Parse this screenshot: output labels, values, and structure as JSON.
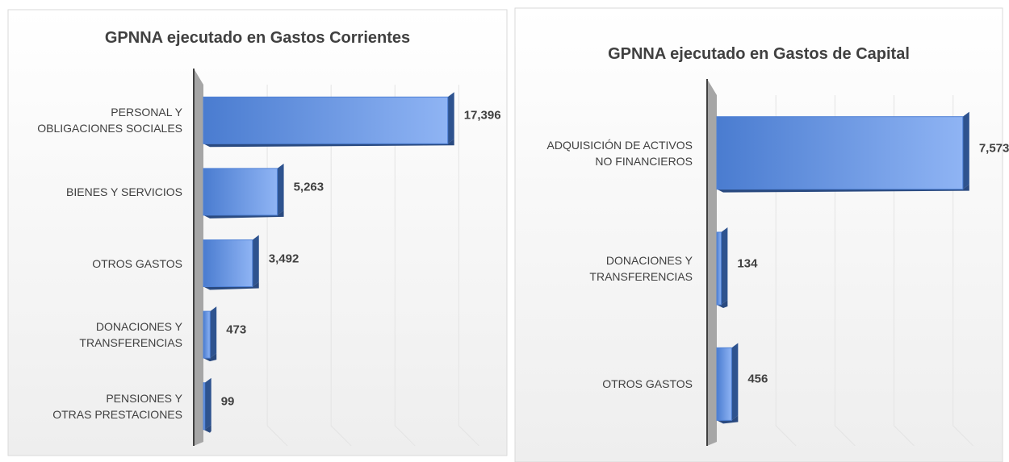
{
  "chart_data": [
    {
      "type": "bar3d_h",
      "title": "GPNNA ejecutado en Gastos Corrientes",
      "categories": [
        "PERSONAL Y\nOBLIGACIONES SOCIALES",
        "BIENES Y SERVICIOS",
        "OTROS GASTOS",
        "DONACIONES Y\nTRANSFERENCIAS",
        "PENSIONES Y\nOTRAS PRESTACIONES"
      ],
      "values": [
        17396,
        5263,
        3492,
        473,
        99
      ],
      "value_labels": [
        "17,396",
        "5,263",
        "3,492",
        "473",
        "99"
      ],
      "color": "#4f81d6",
      "xlim": [
        0,
        20000
      ]
    },
    {
      "type": "bar3d_h",
      "title": "GPNNA ejecutado en Gastos de Capital",
      "categories": [
        "ADQUISICIÓN DE ACTIVOS\nNO FINANCIEROS",
        "DONACIONES Y\nTRANSFERENCIAS",
        "OTROS GASTOS"
      ],
      "values": [
        7573,
        134,
        456
      ],
      "value_labels": [
        "7,573",
        "134",
        "456"
      ],
      "color": "#4f81d6",
      "xlim": [
        0,
        8000
      ]
    }
  ]
}
